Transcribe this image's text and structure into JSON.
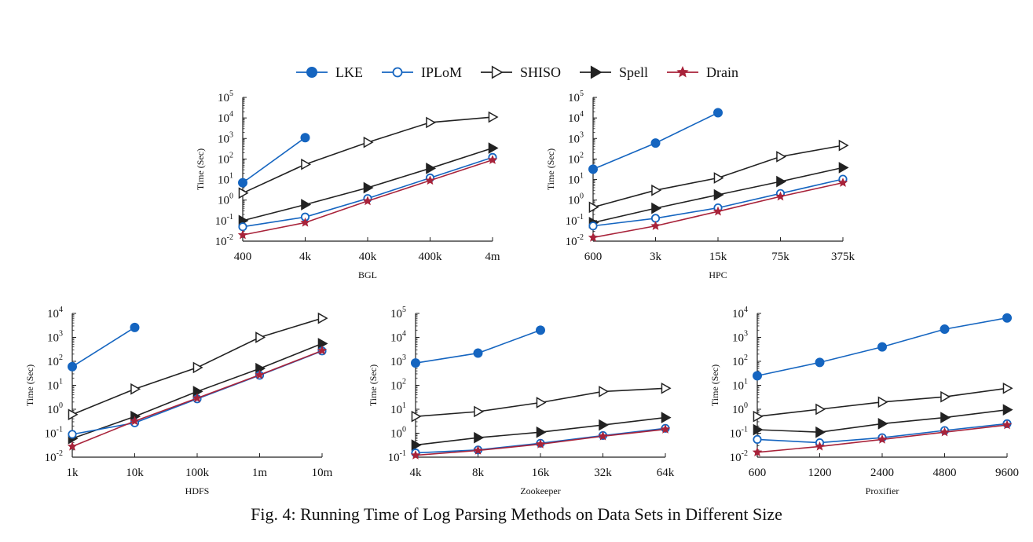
{
  "figure": {
    "caption": "Fig. 4: Running Time of Log Parsing Methods on Data Sets in Different Size"
  },
  "legend": [
    {
      "name": "LKE",
      "color": "#1565c0",
      "marker": "filled-circle"
    },
    {
      "name": "IPLoM",
      "color": "#1565c0",
      "marker": "open-circle"
    },
    {
      "name": "SHISO",
      "color": "#222222",
      "marker": "open-triangle"
    },
    {
      "name": "Spell",
      "color": "#222222",
      "marker": "filled-triangle"
    },
    {
      "name": "Drain",
      "color": "#a8233a",
      "marker": "star"
    }
  ],
  "chart_data": [
    {
      "type": "line",
      "xlabel": "BGL",
      "ylabel": "Time (Sec)",
      "yscale": "log",
      "ylim_exp": [
        -2,
        5
      ],
      "categories": [
        "400",
        "4k",
        "40k",
        "400k",
        "4m"
      ],
      "series": [
        {
          "name": "LKE",
          "values": [
            7,
            1100,
            null,
            null,
            null
          ]
        },
        {
          "name": "IPLoM",
          "values": [
            0.05,
            0.15,
            1.2,
            12,
            120
          ]
        },
        {
          "name": "SHISO",
          "values": [
            2.2,
            55,
            650,
            6000,
            11000
          ]
        },
        {
          "name": "Spell",
          "values": [
            0.1,
            0.6,
            4,
            35,
            340
          ]
        },
        {
          "name": "Drain",
          "values": [
            0.02,
            0.08,
            0.9,
            9,
            90
          ]
        }
      ]
    },
    {
      "type": "line",
      "xlabel": "HPC",
      "ylabel": "Time (Sec)",
      "yscale": "log",
      "ylim_exp": [
        -2,
        5
      ],
      "categories": [
        "600",
        "3k",
        "15k",
        "75k",
        "375k"
      ],
      "series": [
        {
          "name": "LKE",
          "values": [
            32,
            600,
            18000,
            null,
            null
          ]
        },
        {
          "name": "IPLoM",
          "values": [
            0.055,
            0.13,
            0.42,
            2.1,
            10.5
          ]
        },
        {
          "name": "SHISO",
          "values": [
            0.45,
            3,
            12,
            130,
            460
          ]
        },
        {
          "name": "Spell",
          "values": [
            0.08,
            0.4,
            1.8,
            8,
            38
          ]
        },
        {
          "name": "Drain",
          "values": [
            0.015,
            0.055,
            0.28,
            1.5,
            7
          ]
        }
      ]
    },
    {
      "type": "line",
      "xlabel": "HDFS",
      "ylabel": "Time (Sec)",
      "yscale": "log",
      "ylim_exp": [
        -2,
        4
      ],
      "categories": [
        "1k",
        "10k",
        "100k",
        "1m",
        "10m"
      ],
      "series": [
        {
          "name": "LKE",
          "values": [
            60,
            2600,
            null,
            null,
            null
          ]
        },
        {
          "name": "IPLoM",
          "values": [
            0.09,
            0.27,
            2.7,
            26,
            270
          ]
        },
        {
          "name": "SHISO",
          "values": [
            0.6,
            7,
            55,
            1000,
            6300
          ]
        },
        {
          "name": "Spell",
          "values": [
            0.06,
            0.5,
            5.5,
            50,
            550
          ]
        },
        {
          "name": "Drain",
          "values": [
            0.028,
            0.32,
            2.9,
            27,
            280
          ]
        }
      ]
    },
    {
      "type": "line",
      "xlabel": "Zookeeper",
      "ylabel": "Time (Sec)",
      "yscale": "log",
      "ylim_exp": [
        -1,
        5
      ],
      "categories": [
        "4k",
        "8k",
        "16k",
        "32k",
        "64k"
      ],
      "series": [
        {
          "name": "LKE",
          "values": [
            850,
            2200,
            20000,
            null,
            null
          ]
        },
        {
          "name": "IPLoM",
          "values": [
            0.15,
            0.2,
            0.38,
            0.8,
            1.6
          ]
        },
        {
          "name": "SHISO",
          "values": [
            5,
            8,
            19,
            55,
            75
          ]
        },
        {
          "name": "Spell",
          "values": [
            0.32,
            0.65,
            1.1,
            2.2,
            4.5
          ]
        },
        {
          "name": "Drain",
          "values": [
            0.12,
            0.19,
            0.35,
            0.75,
            1.45
          ]
        }
      ]
    },
    {
      "type": "line",
      "xlabel": "Proxifier",
      "ylabel": "Time (Sec)",
      "yscale": "log",
      "ylim_exp": [
        -2,
        4
      ],
      "categories": [
        "600",
        "1200",
        "2400",
        "4800",
        "9600"
      ],
      "series": [
        {
          "name": "LKE",
          "values": [
            25,
            90,
            400,
            2200,
            6500
          ]
        },
        {
          "name": "IPLoM",
          "values": [
            0.055,
            0.04,
            0.065,
            0.13,
            0.25
          ]
        },
        {
          "name": "SHISO",
          "values": [
            0.5,
            1,
            2,
            3.3,
            7.5
          ]
        },
        {
          "name": "Spell",
          "values": [
            0.14,
            0.11,
            0.25,
            0.45,
            0.95
          ]
        },
        {
          "name": "Drain",
          "values": [
            0.016,
            0.028,
            0.055,
            0.11,
            0.22
          ]
        }
      ]
    }
  ]
}
